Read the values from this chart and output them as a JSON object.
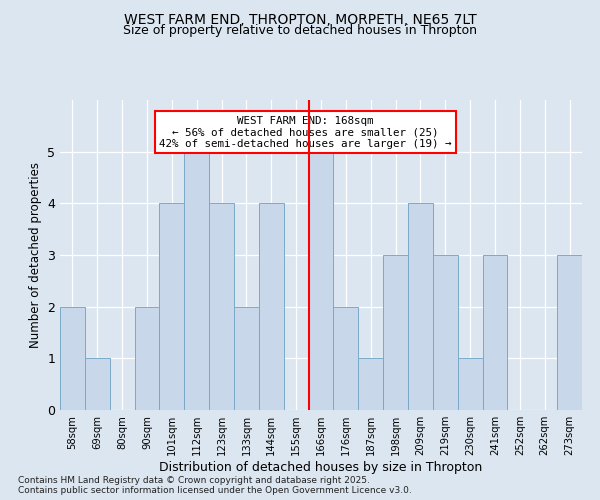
{
  "title1": "WEST FARM END, THROPTON, MORPETH, NE65 7LT",
  "title2": "Size of property relative to detached houses in Thropton",
  "xlabel": "Distribution of detached houses by size in Thropton",
  "ylabel": "Number of detached properties",
  "footnote": "Contains HM Land Registry data © Crown copyright and database right 2025.\nContains public sector information licensed under the Open Government Licence v3.0.",
  "categories": [
    "58sqm",
    "69sqm",
    "80sqm",
    "90sqm",
    "101sqm",
    "112sqm",
    "123sqm",
    "133sqm",
    "144sqm",
    "155sqm",
    "166sqm",
    "176sqm",
    "187sqm",
    "198sqm",
    "209sqm",
    "219sqm",
    "230sqm",
    "241sqm",
    "252sqm",
    "262sqm",
    "273sqm"
  ],
  "values": [
    2,
    1,
    0,
    2,
    4,
    5,
    4,
    2,
    4,
    0,
    5,
    2,
    1,
    3,
    4,
    3,
    1,
    3,
    0,
    0,
    3
  ],
  "bar_color": "#c8d8ea",
  "bar_edge_color": "#7aaac8",
  "vline_x_index": 10,
  "vline_color": "red",
  "annotation_title": "WEST FARM END: 168sqm",
  "annotation_line1": "← 56% of detached houses are smaller (25)",
  "annotation_line2": "42% of semi-detached houses are larger (19) →",
  "annotation_box_color": "white",
  "annotation_box_edge": "red",
  "ylim": [
    0,
    6
  ],
  "yticks": [
    0,
    1,
    2,
    3,
    4,
    5
  ],
  "background_color": "#dce6f0",
  "plot_bg_color": "#dce6f0",
  "title_fontsize": 10,
  "subtitle_fontsize": 9,
  "footnote_fontsize": 6.5
}
